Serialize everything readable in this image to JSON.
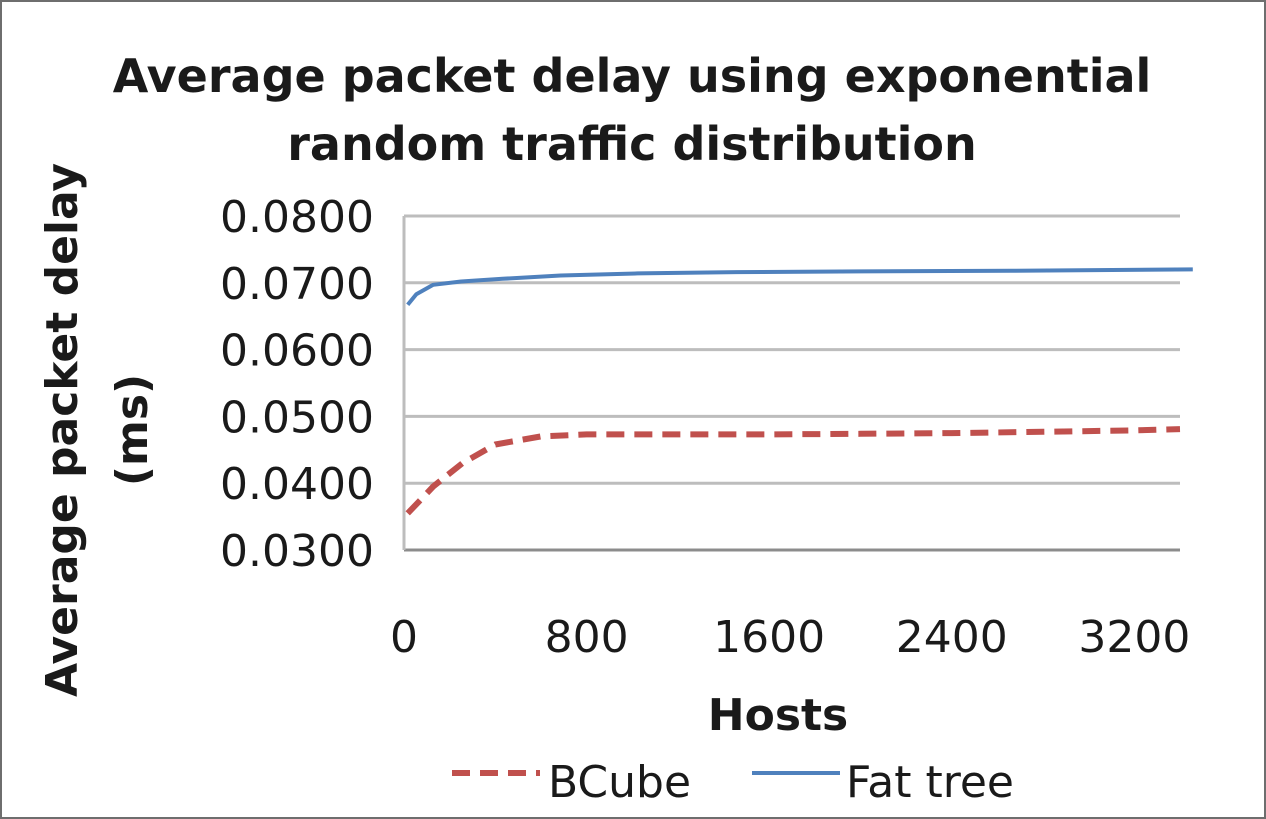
{
  "chart_data": {
    "type": "line",
    "title": "Average packet delay using exponential random traffic distribution",
    "title_lines": [
      "Average packet delay using exponential",
      "random traffic distribution"
    ],
    "xlabel": "Hosts",
    "ylabel": "Average packet delay (ms)",
    "ylabel_lines": [
      "Average packet delay",
      "(ms)"
    ],
    "xlim": [
      0,
      3400
    ],
    "ylim": [
      0.03,
      0.08
    ],
    "x_ticks": [
      0,
      800,
      1600,
      2400,
      3200
    ],
    "x_tick_labels": [
      "0",
      "800",
      "1600",
      "2400",
      "3200"
    ],
    "y_ticks": [
      0.03,
      0.04,
      0.05,
      0.06,
      0.07,
      0.08
    ],
    "y_tick_labels": [
      "0.0300",
      "0.0400",
      "0.0500",
      "0.0600",
      "0.0700",
      "0.0800"
    ],
    "grid": true,
    "legend_position": "bottom",
    "series": [
      {
        "name": "BCube",
        "color": "#c0504d",
        "dash": "dashed",
        "x": [
          16,
          64,
          128,
          256,
          400,
          600,
          800,
          1200,
          1600,
          2000,
          2400,
          2800,
          3200,
          3400
        ],
        "y": [
          0.0355,
          0.0372,
          0.0395,
          0.043,
          0.0458,
          0.047,
          0.0473,
          0.0473,
          0.0473,
          0.0474,
          0.0475,
          0.0477,
          0.0479,
          0.0481
        ]
      },
      {
        "name": "Fat tree",
        "color": "#4f81bd",
        "dash": "solid",
        "x": [
          16,
          54,
          128,
          250,
          432,
          686,
          1024,
          1458,
          2000,
          2662,
          3456
        ],
        "y": [
          0.0667,
          0.0683,
          0.0697,
          0.0702,
          0.0706,
          0.0711,
          0.0714,
          0.0716,
          0.0717,
          0.0718,
          0.072
        ]
      }
    ]
  }
}
